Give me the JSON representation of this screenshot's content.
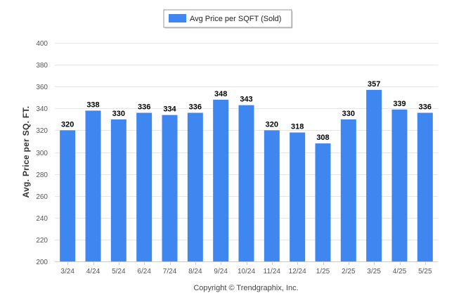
{
  "chart_data": {
    "type": "bar",
    "categories": [
      "3/24",
      "4/24",
      "5/24",
      "6/24",
      "7/24",
      "8/24",
      "9/24",
      "10/24",
      "11/24",
      "12/24",
      "1/25",
      "2/25",
      "3/25",
      "4/25",
      "5/25"
    ],
    "series": [
      {
        "name": "Avg Price per SQFT (Sold)",
        "values": [
          320,
          338,
          330,
          336,
          334,
          336,
          348,
          343,
          320,
          318,
          308,
          330,
          357,
          339,
          336
        ],
        "color": "#3f86f0"
      }
    ],
    "title": "",
    "xlabel": "",
    "ylabel": "Avg. Price per SQ. FT.",
    "ylim": [
      200,
      400
    ],
    "yticks": [
      200,
      220,
      240,
      260,
      280,
      300,
      320,
      340,
      360,
      380,
      400
    ],
    "grid": true,
    "legend_position": "top-center",
    "data_labels": true
  },
  "footer": {
    "credit": "Copyright © Trendgraphix, Inc."
  }
}
